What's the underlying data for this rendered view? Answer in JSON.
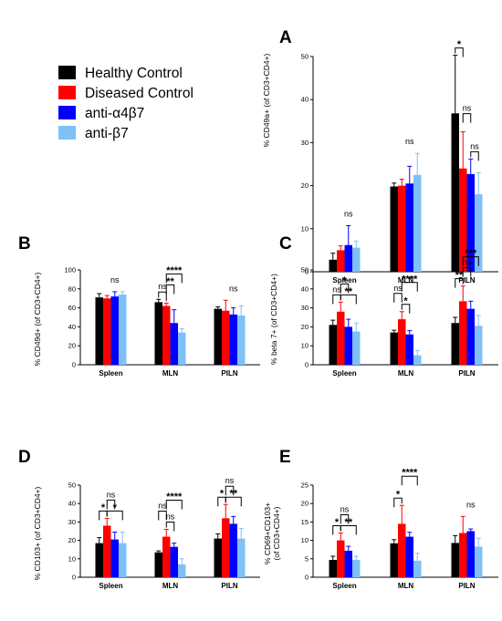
{
  "legend": [
    {
      "name": "Healthy Control",
      "color": "#000000"
    },
    {
      "name": "Diseased Control",
      "color": "#ff0000"
    },
    {
      "name": "anti-α4β7",
      "color": "#0000ff"
    },
    {
      "name": "anti-β7",
      "color": "#7fc0f5"
    }
  ],
  "chart_data": [
    {
      "panel": "A",
      "type": "bar",
      "ylabel": "% CD49a+ (of CD3+CD4+)",
      "ylim": [
        0,
        50
      ],
      "yticks": [
        0,
        10,
        20,
        30,
        40,
        50
      ],
      "categories": [
        "Spleen",
        "MLN",
        "PILN"
      ],
      "series": [
        {
          "name": "Healthy Control",
          "values": [
            2.8,
            19.8,
            36.8
          ],
          "errors": [
            1.5,
            0.8,
            13.5
          ]
        },
        {
          "name": "Diseased Control",
          "values": [
            5.0,
            20.0,
            24.0
          ],
          "errors": [
            1.0,
            1.5,
            8.5
          ]
        },
        {
          "name": "anti-α4β7",
          "values": [
            6.2,
            20.5,
            22.7
          ],
          "errors": [
            4.5,
            4.0,
            3.5
          ]
        },
        {
          "name": "anti-β7",
          "values": [
            5.6,
            22.5,
            18.0
          ],
          "errors": [
            1.5,
            5.0,
            5.0
          ]
        }
      ],
      "annotations": [
        {
          "label": "ns",
          "category": 0,
          "from": 1,
          "to": 3,
          "bracket": false
        },
        {
          "label": "ns",
          "category": 1,
          "from": 1,
          "to": 3,
          "bracket": false
        },
        {
          "label": "*",
          "category": 2,
          "from": 0,
          "to": 1,
          "bracket": true,
          "level": 0
        },
        {
          "label": "ns",
          "category": 2,
          "from": 1,
          "to": 2,
          "bracket": true,
          "level": 1
        },
        {
          "label": "ns",
          "category": 2,
          "from": 2,
          "to": 3,
          "bracket": true,
          "level": 0
        }
      ]
    },
    {
      "panel": "B",
      "type": "bar",
      "ylabel": "% CD49d+ (of CD3+CD4+)",
      "ylim": [
        0,
        100
      ],
      "yticks": [
        0,
        20,
        40,
        60,
        80,
        100
      ],
      "categories": [
        "Spleen",
        "MLN",
        "PILN"
      ],
      "series": [
        {
          "name": "Healthy Control",
          "values": [
            71,
            66,
            59
          ],
          "errors": [
            4,
            3,
            2
          ]
        },
        {
          "name": "Diseased Control",
          "values": [
            70,
            62,
            57
          ],
          "errors": [
            3,
            3,
            11
          ]
        },
        {
          "name": "anti-α4β7",
          "values": [
            72,
            44,
            53
          ],
          "errors": [
            5,
            14,
            7
          ]
        },
        {
          "name": "anti-β7",
          "values": [
            74,
            34,
            52
          ],
          "errors": [
            3,
            4,
            10
          ]
        }
      ],
      "annotations": [
        {
          "label": "ns",
          "category": 0,
          "from": 1,
          "to": 3,
          "bracket": false
        },
        {
          "label": "ns",
          "category": 1,
          "from": 0,
          "to": 1,
          "bracket": true,
          "level": 0
        },
        {
          "label": "**",
          "category": 1,
          "from": 1,
          "to": 2,
          "bracket": true,
          "level": 1
        },
        {
          "label": "****",
          "category": 1,
          "from": 1,
          "to": 3,
          "bracket": true,
          "level": 2
        },
        {
          "label": "ns",
          "category": 2,
          "from": 1,
          "to": 3,
          "bracket": false
        }
      ]
    },
    {
      "panel": "C",
      "type": "bar",
      "ylabel": "% beta 7+ (of CD3+CD4+)",
      "ylim": [
        0,
        50
      ],
      "yticks": [
        0,
        10,
        20,
        30,
        40,
        50
      ],
      "categories": [
        "Spleen",
        "MLN",
        "PILN"
      ],
      "series": [
        {
          "name": "Healthy Control",
          "values": [
            21,
            17,
            22
          ],
          "errors": [
            2.5,
            1.2,
            3
          ]
        },
        {
          "name": "Diseased Control",
          "values": [
            28,
            24,
            33.5
          ],
          "errors": [
            5,
            4,
            8
          ]
        },
        {
          "name": "anti-α4β7",
          "values": [
            20,
            16,
            29.5
          ],
          "errors": [
            4,
            2,
            4
          ]
        },
        {
          "name": "anti-β7",
          "values": [
            17.5,
            5,
            20.5
          ],
          "errors": [
            4.5,
            2.5,
            5.5
          ]
        }
      ],
      "annotations": [
        {
          "label": "ns",
          "category": 0,
          "from": 0,
          "to": 1,
          "bracket": true,
          "level": 0
        },
        {
          "label": "*",
          "category": 0,
          "from": 1,
          "to": 2,
          "bracket": true,
          "level": 1
        },
        {
          "label": "**",
          "category": 0,
          "from": 1,
          "to": 3,
          "bracket": true,
          "level": 0
        },
        {
          "label": "ns",
          "category": 1,
          "from": 0,
          "to": 1,
          "bracket": true,
          "level": 1
        },
        {
          "label": "*",
          "category": 1,
          "from": 1,
          "to": 2,
          "bracket": true,
          "level": 0
        },
        {
          "label": "****",
          "category": 1,
          "from": 1,
          "to": 3,
          "bracket": true,
          "level": 2
        },
        {
          "label": "**",
          "category": 2,
          "from": 0,
          "to": 1,
          "bracket": true,
          "level": 0
        },
        {
          "label": "ns",
          "category": 2,
          "from": 1,
          "to": 2,
          "bracket": true,
          "level": 1
        },
        {
          "label": "***",
          "category": 2,
          "from": 1,
          "to": 3,
          "bracket": true,
          "level": 2
        }
      ]
    },
    {
      "panel": "D",
      "type": "bar",
      "ylabel": "% CD103+ (of CD3+CD4+)",
      "ylim": [
        0,
        50
      ],
      "yticks": [
        0,
        10,
        20,
        30,
        40,
        50
      ],
      "categories": [
        "Spleen",
        "MLN",
        "PILN"
      ],
      "series": [
        {
          "name": "Healthy Control",
          "values": [
            18.5,
            13.5,
            21
          ],
          "errors": [
            3,
            0.8,
            2.5
          ]
        },
        {
          "name": "Diseased Control",
          "values": [
            28,
            22,
            32
          ],
          "errors": [
            4,
            4,
            7.5
          ]
        },
        {
          "name": "anti-α4β7",
          "values": [
            20.5,
            16.5,
            29
          ],
          "errors": [
            4,
            2,
            4
          ]
        },
        {
          "name": "anti-β7",
          "values": [
            18.5,
            7,
            21
          ],
          "errors": [
            6,
            3,
            5.5
          ]
        }
      ],
      "annotations": [
        {
          "label": "*",
          "category": 0,
          "from": 0,
          "to": 1,
          "bracket": true,
          "level": 0
        },
        {
          "label": "ns",
          "category": 0,
          "from": 1,
          "to": 2,
          "bracket": true,
          "level": 1
        },
        {
          "label": "*",
          "category": 0,
          "from": 1,
          "to": 3,
          "bracket": true,
          "level": 0
        },
        {
          "label": "ns",
          "category": 1,
          "from": 0,
          "to": 1,
          "bracket": true,
          "level": 1
        },
        {
          "label": "ns",
          "category": 1,
          "from": 1,
          "to": 2,
          "bracket": true,
          "level": 0
        },
        {
          "label": "****",
          "category": 1,
          "from": 1,
          "to": 3,
          "bracket": true,
          "level": 2
        },
        {
          "label": "*",
          "category": 2,
          "from": 0,
          "to": 1,
          "bracket": true,
          "level": 0
        },
        {
          "label": "ns",
          "category": 2,
          "from": 1,
          "to": 2,
          "bracket": true,
          "level": 1
        },
        {
          "label": "**",
          "category": 2,
          "from": 1,
          "to": 3,
          "bracket": true,
          "level": 0
        }
      ]
    },
    {
      "panel": "E",
      "type": "bar",
      "ylabel": [
        "% CD69+CD103+",
        "(of CD3+CD4+)"
      ],
      "ylim": [
        0,
        25
      ],
      "yticks": [
        0,
        5,
        10,
        15,
        20,
        25
      ],
      "categories": [
        "Spleen",
        "MLN",
        "PILN"
      ],
      "series": [
        {
          "name": "Healthy Control",
          "values": [
            4.7,
            9.2,
            9.3
          ],
          "errors": [
            1,
            1,
            2
          ]
        },
        {
          "name": "Diseased Control",
          "values": [
            10,
            14.5,
            12
          ],
          "errors": [
            2,
            5,
            4.5
          ]
        },
        {
          "name": "anti-α4β7",
          "values": [
            7.2,
            11,
            12.5
          ],
          "errors": [
            1.2,
            1.2,
            0.6
          ]
        },
        {
          "name": "anti-β7",
          "values": [
            4.7,
            4.5,
            8.3
          ],
          "errors": [
            1,
            2,
            2.3
          ]
        }
      ],
      "annotations": [
        {
          "label": "*",
          "category": 0,
          "from": 0,
          "to": 1,
          "bracket": true,
          "level": 0
        },
        {
          "label": "ns",
          "category": 0,
          "from": 1,
          "to": 2,
          "bracket": true,
          "level": 1
        },
        {
          "label": "**",
          "category": 0,
          "from": 1,
          "to": 3,
          "bracket": true,
          "level": 0
        },
        {
          "label": "*",
          "category": 1,
          "from": 0,
          "to": 1,
          "bracket": true,
          "level": 0
        },
        {
          "label": "****",
          "category": 1,
          "from": 1,
          "to": 3,
          "bracket": true,
          "level": 2
        },
        {
          "label": "ns",
          "category": 2,
          "from": 1,
          "to": 3,
          "bracket": false
        }
      ]
    }
  ]
}
